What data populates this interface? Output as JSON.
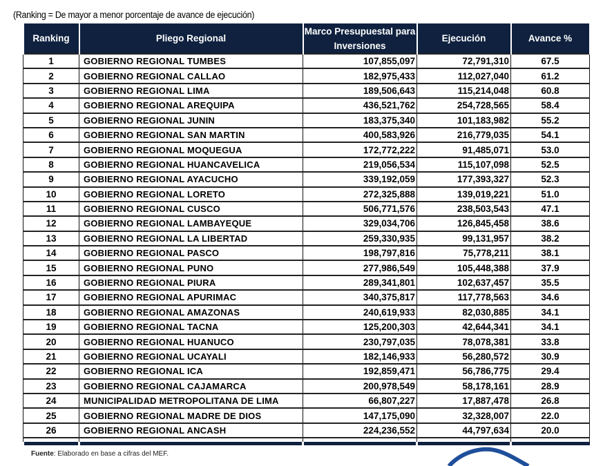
{
  "note": "(Ranking = De   mayor a menor porcentaje de  avance de ejecución)",
  "headers": [
    "Ranking",
    "Pliego Regional",
    "Marco Presupuestal para Inversiones",
    "Ejecución",
    "Avance %"
  ],
  "rows": [
    [
      "1",
      "GOBIERNO REGIONAL TUMBES",
      "107,855,097",
      "72,791,310",
      "67.5"
    ],
    [
      "2",
      "GOBIERNO REGIONAL CALLAO",
      "182,975,433",
      "112,027,040",
      "61.2"
    ],
    [
      "3",
      "GOBIERNO REGIONAL LIMA",
      "189,506,643",
      "115,214,048",
      "60.8"
    ],
    [
      "4",
      "GOBIERNO REGIONAL AREQUIPA",
      "436,521,762",
      "254,728,565",
      "58.4"
    ],
    [
      "5",
      "GOBIERNO REGIONAL JUNIN",
      "183,375,340",
      "101,183,982",
      "55.2"
    ],
    [
      "6",
      "GOBIERNO REGIONAL SAN MARTIN",
      "400,583,926",
      "216,779,035",
      "54.1"
    ],
    [
      "7",
      "GOBIERNO REGIONAL MOQUEGUA",
      "172,772,222",
      "91,485,071",
      "53.0"
    ],
    [
      "8",
      "GOBIERNO REGIONAL HUANCAVELICA",
      "219,056,534",
      "115,107,098",
      "52.5"
    ],
    [
      "9",
      "GOBIERNO REGIONAL AYACUCHO",
      "339,192,059",
      "177,393,327",
      "52.3"
    ],
    [
      "10",
      "GOBIERNO REGIONAL LORETO",
      "272,325,888",
      "139,019,221",
      "51.0"
    ],
    [
      "11",
      "GOBIERNO REGIONAL CUSCO",
      "506,771,576",
      "238,503,543",
      "47.1"
    ],
    [
      "12",
      "GOBIERNO REGIONAL LAMBAYEQUE",
      "329,034,706",
      "126,845,458",
      "38.6"
    ],
    [
      "13",
      "GOBIERNO REGIONAL LA LIBERTAD",
      "259,330,935",
      "99,131,957",
      "38.2"
    ],
    [
      "14",
      "GOBIERNO REGIONAL PASCO",
      "198,797,816",
      "75,778,211",
      "38.1"
    ],
    [
      "15",
      "GOBIERNO REGIONAL PUNO",
      "277,986,549",
      "105,448,388",
      "37.9"
    ],
    [
      "16",
      "GOBIERNO REGIONAL PIURA",
      "289,341,801",
      "102,637,457",
      "35.5"
    ],
    [
      "17",
      "GOBIERNO REGIONAL APURIMAC",
      "340,375,817",
      "117,778,563",
      "34.6"
    ],
    [
      "18",
      "GOBIERNO REGIONAL AMAZONAS",
      "240,619,933",
      "82,030,885",
      "34.1"
    ],
    [
      "19",
      "GOBIERNO REGIONAL TACNA",
      "125,200,303",
      "42,644,341",
      "34.1"
    ],
    [
      "20",
      "GOBIERNO REGIONAL HUANUCO",
      "230,797,035",
      "78,078,381",
      "33.8"
    ],
    [
      "21",
      "GOBIERNO REGIONAL UCAYALI",
      "182,146,933",
      "56,280,572",
      "30.9"
    ],
    [
      "22",
      "GOBIERNO REGIONAL ICA",
      "192,859,471",
      "56,786,775",
      "29.4"
    ],
    [
      "23",
      "GOBIERNO REGIONAL CAJAMARCA",
      "200,978,549",
      "58,178,161",
      "28.9"
    ],
    [
      "24",
      "MUNICIPALIDAD METROPOLITANA DE LIMA",
      "66,807,227",
      "17,887,478",
      "26.8"
    ],
    [
      "25",
      "GOBIERNO REGIONAL MADRE DE DIOS",
      "147,175,090",
      "32,328,007",
      "22.0"
    ],
    [
      "26",
      "GOBIERNO REGIONAL ANCASH",
      "224,236,552",
      "44,797,634",
      "20.0"
    ]
  ],
  "footer": {
    "label": "Fuente",
    "text": ": Elaborado en base a cifras del MEF."
  },
  "colors": {
    "header_bg": "#0f213f",
    "deco_curve": "#1f4f9a"
  }
}
